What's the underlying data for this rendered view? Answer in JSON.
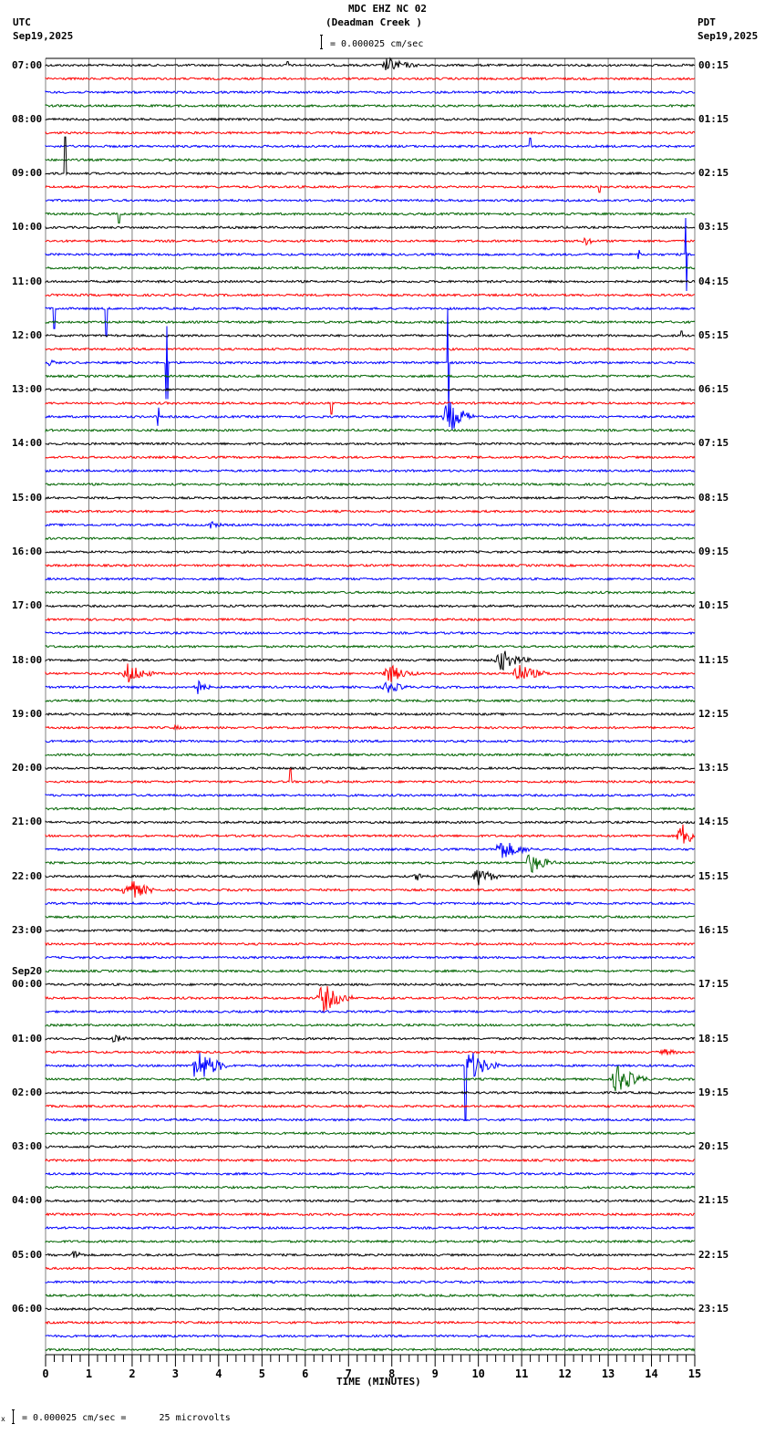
{
  "header": {
    "title": "MDC EHZ NC 02",
    "subtitle": "(Deadman Creek )",
    "left_tz": "UTC",
    "left_date": "Sep19,2025",
    "right_tz": "PDT",
    "right_date": "Sep19,2025",
    "scale_text": "= 0.000025 cm/sec"
  },
  "footer": {
    "scale_text": "= 0.000025 cm/sec =      25 microvolts",
    "scale_prefix": "x"
  },
  "chart_data": {
    "type": "seismogram",
    "title": "MDC EHZ NC 02 (Deadman Creek )",
    "xlabel": "TIME (MINUTES)",
    "x_ticks": [
      "0",
      "1",
      "2",
      "3",
      "4",
      "5",
      "6",
      "7",
      "8",
      "9",
      "10",
      "11",
      "12",
      "13",
      "14",
      "15"
    ],
    "xlim": [
      0,
      15
    ],
    "grid": true,
    "trace_colors": [
      "#000000",
      "#ff0000",
      "#0000ff",
      "#006400"
    ],
    "rows_per_hour": 4,
    "row_count": 96,
    "left_labels": [
      {
        "row": 0,
        "text": "07:00"
      },
      {
        "row": 4,
        "text": "08:00"
      },
      {
        "row": 8,
        "text": "09:00"
      },
      {
        "row": 12,
        "text": "10:00"
      },
      {
        "row": 16,
        "text": "11:00"
      },
      {
        "row": 20,
        "text": "12:00"
      },
      {
        "row": 24,
        "text": "13:00"
      },
      {
        "row": 28,
        "text": "14:00"
      },
      {
        "row": 32,
        "text": "15:00"
      },
      {
        "row": 36,
        "text": "16:00"
      },
      {
        "row": 40,
        "text": "17:00"
      },
      {
        "row": 44,
        "text": "18:00"
      },
      {
        "row": 48,
        "text": "19:00"
      },
      {
        "row": 52,
        "text": "20:00"
      },
      {
        "row": 56,
        "text": "21:00"
      },
      {
        "row": 60,
        "text": "22:00"
      },
      {
        "row": 64,
        "text": "23:00"
      },
      {
        "row": 68,
        "text": "00:00",
        "date": "Sep20"
      },
      {
        "row": 72,
        "text": "01:00"
      },
      {
        "row": 76,
        "text": "02:00"
      },
      {
        "row": 80,
        "text": "03:00"
      },
      {
        "row": 84,
        "text": "04:00"
      },
      {
        "row": 88,
        "text": "05:00"
      },
      {
        "row": 92,
        "text": "06:00"
      }
    ],
    "right_labels": [
      {
        "row": 0,
        "text": "00:15"
      },
      {
        "row": 4,
        "text": "01:15"
      },
      {
        "row": 8,
        "text": "02:15"
      },
      {
        "row": 12,
        "text": "03:15"
      },
      {
        "row": 16,
        "text": "04:15"
      },
      {
        "row": 20,
        "text": "05:15"
      },
      {
        "row": 24,
        "text": "06:15"
      },
      {
        "row": 28,
        "text": "07:15"
      },
      {
        "row": 32,
        "text": "08:15"
      },
      {
        "row": 36,
        "text": "09:15"
      },
      {
        "row": 40,
        "text": "10:15"
      },
      {
        "row": 44,
        "text": "11:15"
      },
      {
        "row": 48,
        "text": "12:15"
      },
      {
        "row": 52,
        "text": "13:15"
      },
      {
        "row": 56,
        "text": "14:15"
      },
      {
        "row": 60,
        "text": "15:15"
      },
      {
        "row": 64,
        "text": "16:15"
      },
      {
        "row": 68,
        "text": "17:15"
      },
      {
        "row": 72,
        "text": "18:15"
      },
      {
        "row": 76,
        "text": "19:15"
      },
      {
        "row": 80,
        "text": "20:15"
      },
      {
        "row": 84,
        "text": "21:15"
      },
      {
        "row": 88,
        "text": "22:15"
      },
      {
        "row": 92,
        "text": "23:15"
      }
    ],
    "events": [
      {
        "row": 0,
        "min": 7.8,
        "dur": 0.9,
        "amp": 9,
        "type": "quake"
      },
      {
        "row": 0,
        "min": 5.6,
        "dur": 0.05,
        "amp": 4,
        "type": "spike"
      },
      {
        "row": 6,
        "min": 11.2,
        "dur": 0.05,
        "amp": 9,
        "type": "spike"
      },
      {
        "row": 8,
        "min": 0.45,
        "dur": 0.05,
        "amp": 40,
        "type": "spike"
      },
      {
        "row": 9,
        "min": 12.8,
        "dur": 0.05,
        "amp": 6,
        "type": "spike"
      },
      {
        "row": 11,
        "min": 1.7,
        "dur": 0.05,
        "amp": 10,
        "type": "spike"
      },
      {
        "row": 13,
        "min": 12.4,
        "dur": 0.4,
        "amp": 5,
        "type": "quake"
      },
      {
        "row": 14,
        "min": 13.7,
        "dur": 0.05,
        "amp": 5,
        "type": "spike"
      },
      {
        "row": 14,
        "min": 14.8,
        "dur": 0.05,
        "amp": 40,
        "type": "spike"
      },
      {
        "row": 18,
        "min": 0.2,
        "dur": 0.05,
        "amp": 22,
        "type": "spike"
      },
      {
        "row": 18,
        "min": 1.4,
        "dur": 0.05,
        "amp": 30,
        "type": "spike"
      },
      {
        "row": 20,
        "min": 14.7,
        "dur": 0.05,
        "amp": 5,
        "type": "spike"
      },
      {
        "row": 22,
        "min": 0.05,
        "dur": 0.15,
        "amp": 6,
        "type": "quake"
      },
      {
        "row": 22,
        "min": 2.8,
        "dur": 0.05,
        "amp": 40,
        "type": "spike"
      },
      {
        "row": 22,
        "min": 9.3,
        "dur": 0.1,
        "amp": 60,
        "type": "spike"
      },
      {
        "row": 25,
        "min": 6.6,
        "dur": 0.05,
        "amp": 12,
        "type": "spike"
      },
      {
        "row": 26,
        "min": 2.6,
        "dur": 0.05,
        "amp": 10,
        "type": "spike"
      },
      {
        "row": 26,
        "min": 9.2,
        "dur": 0.7,
        "amp": 20,
        "type": "quake"
      },
      {
        "row": 34,
        "min": 3.7,
        "dur": 0.5,
        "amp": 5,
        "type": "quake"
      },
      {
        "row": 44,
        "min": 10.4,
        "dur": 0.8,
        "amp": 14,
        "type": "quake"
      },
      {
        "row": 45,
        "min": 1.8,
        "dur": 0.8,
        "amp": 12,
        "type": "quake"
      },
      {
        "row": 45,
        "min": 7.8,
        "dur": 0.8,
        "amp": 12,
        "type": "quake"
      },
      {
        "row": 45,
        "min": 10.8,
        "dur": 0.9,
        "amp": 12,
        "type": "quake"
      },
      {
        "row": 46,
        "min": 3.4,
        "dur": 0.4,
        "amp": 10,
        "type": "quake"
      },
      {
        "row": 46,
        "min": 7.8,
        "dur": 0.7,
        "amp": 8,
        "type": "quake"
      },
      {
        "row": 49,
        "min": 2.9,
        "dur": 0.4,
        "amp": 3,
        "type": "quake"
      },
      {
        "row": 53,
        "min": 5.65,
        "dur": 0.05,
        "amp": 14,
        "type": "spike"
      },
      {
        "row": 57,
        "min": 14.6,
        "dur": 0.6,
        "amp": 15,
        "type": "quake"
      },
      {
        "row": 58,
        "min": 10.4,
        "dur": 0.9,
        "amp": 13,
        "type": "quake"
      },
      {
        "row": 59,
        "min": 11.1,
        "dur": 0.7,
        "amp": 13,
        "type": "quake"
      },
      {
        "row": 60,
        "min": 8.5,
        "dur": 0.5,
        "amp": 5,
        "type": "quake"
      },
      {
        "row": 60,
        "min": 9.9,
        "dur": 0.6,
        "amp": 13,
        "type": "quake"
      },
      {
        "row": 61,
        "min": 1.8,
        "dur": 0.8,
        "amp": 14,
        "type": "quake"
      },
      {
        "row": 69,
        "min": 6.3,
        "dur": 0.8,
        "amp": 18,
        "type": "quake"
      },
      {
        "row": 72,
        "min": 1.5,
        "dur": 0.6,
        "amp": 5,
        "type": "quake"
      },
      {
        "row": 73,
        "min": 14.2,
        "dur": 0.8,
        "amp": 4,
        "type": "quake"
      },
      {
        "row": 74,
        "min": 3.4,
        "dur": 0.8,
        "amp": 22,
        "type": "quake"
      },
      {
        "row": 74,
        "min": 9.7,
        "dur": 0.8,
        "amp": 18,
        "type": "quake"
      },
      {
        "row": 74,
        "min": 9.7,
        "dur": 0.05,
        "amp": 60,
        "type": "spike"
      },
      {
        "row": 75,
        "min": 13.1,
        "dur": 0.8,
        "amp": 18,
        "type": "quake"
      },
      {
        "row": 88,
        "min": 0.6,
        "dur": 0.3,
        "amp": 7,
        "type": "quake"
      }
    ]
  }
}
